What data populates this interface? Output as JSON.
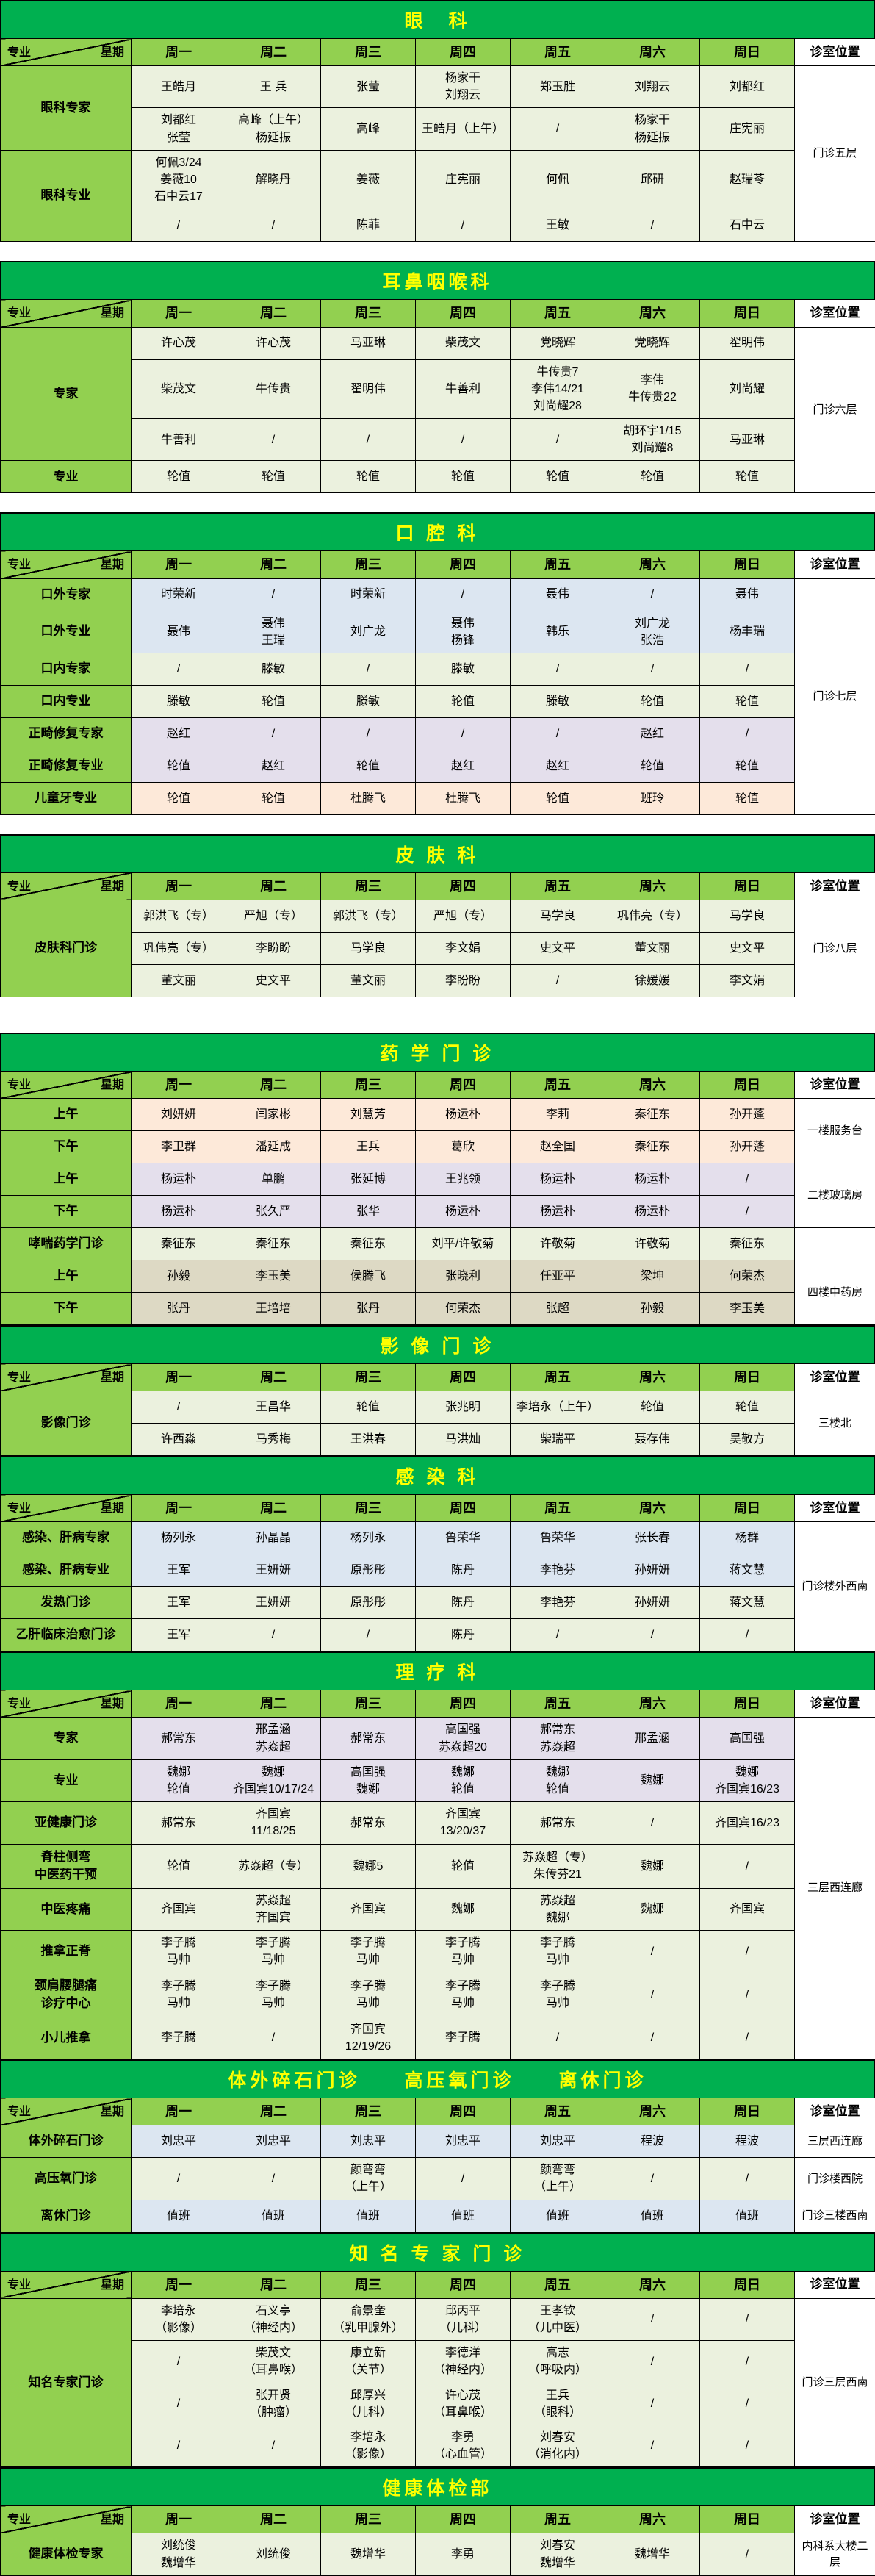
{
  "palette": {
    "title_bg": "#00B050",
    "title_fg": "#FFFF00",
    "head_bg": "#92D050",
    "border": "#000000"
  },
  "colors": {
    "g": "#EBF1DE",
    "b": "#DCE6F1",
    "p": "#E4DFEC",
    "o": "#FDE9D9",
    "t": "#DDD9C4"
  },
  "header": {
    "corner_left": "专业",
    "corner_right": "星期",
    "days": [
      "周一",
      "周二",
      "周三",
      "周四",
      "周五",
      "周六",
      "周日"
    ],
    "location": "诊室位置"
  },
  "sections": [
    {
      "title": "眼　科",
      "gap": 0,
      "rows": [
        {
          "label": "眼科专家",
          "lspan": 2,
          "bg": "g",
          "loc": "门诊五层",
          "lospan": 4,
          "cells": [
            "王皓月",
            "王 兵",
            "张莹",
            "杨家干\n刘翔云",
            "郑玉胜",
            "刘翔云",
            "刘都红"
          ]
        },
        {
          "bg": "g",
          "cells": [
            "刘都红\n张莹",
            "高峰（上午）\n杨延振",
            "高峰",
            "王皓月（上午）",
            "/",
            "杨家干\n杨延振",
            "庄宪丽"
          ]
        },
        {
          "label": "眼科专业",
          "lspan": 2,
          "bg": "g",
          "cells": [
            "何佩3/24\n姜薇10\n石中云17",
            "解晓丹",
            "姜薇",
            "庄宪丽",
            "何佩",
            "邱研",
            "赵瑞苓"
          ]
        },
        {
          "bg": "g",
          "cells": [
            "/",
            "/",
            "陈菲",
            "/",
            "王敏",
            "/",
            "石中云"
          ]
        }
      ]
    },
    {
      "title": "耳鼻咽喉科",
      "gap": 26,
      "rows": [
        {
          "label": "专家",
          "lspan": 3,
          "bg": "g",
          "loc": "门诊六层",
          "lospan": 4,
          "cells": [
            "许心茂",
            "许心茂",
            "马亚琳",
            "柴茂文",
            "党晓辉",
            "党晓辉",
            "翟明伟"
          ]
        },
        {
          "bg": "g",
          "cells": [
            "柴茂文",
            "牛传贵",
            "翟明伟",
            "牛善利",
            "牛传贵7\n李伟14/21\n刘尚耀28",
            "李伟\n牛传贵22",
            "刘尚耀"
          ]
        },
        {
          "bg": "g",
          "cells": [
            "牛善利",
            "/",
            "/",
            "/",
            "/",
            "胡环宇1/15\n刘尚耀8",
            "马亚琳"
          ]
        },
        {
          "label": "专业",
          "lspan": 1,
          "bg": "g",
          "cells": [
            "轮值",
            "轮值",
            "轮值",
            "轮值",
            "轮值",
            "轮值",
            "轮值"
          ]
        }
      ]
    },
    {
      "title": "口 腔 科",
      "gap": 26,
      "rows": [
        {
          "label": "口外专家",
          "lspan": 1,
          "bg": "b",
          "loc": "门诊七层",
          "lospan": 7,
          "cells": [
            "时荣新",
            "/",
            "时荣新",
            "/",
            "聂伟",
            "/",
            "聂伟"
          ]
        },
        {
          "label": "口外专业",
          "lspan": 1,
          "bg": "b",
          "cells": [
            "聂伟",
            "聂伟\n王瑞",
            "刘广龙",
            "聂伟\n杨锋",
            "韩乐",
            "刘广龙\n张浩",
            "杨丰瑞"
          ]
        },
        {
          "label": "口内专家",
          "lspan": 1,
          "bg": "g",
          "cells": [
            "/",
            "滕敏",
            "/",
            "滕敏",
            "/",
            "/",
            "/"
          ]
        },
        {
          "label": "口内专业",
          "lspan": 1,
          "bg": "g",
          "cells": [
            "滕敏",
            "轮值",
            "滕敏",
            "轮值",
            "滕敏",
            "轮值",
            "轮值"
          ]
        },
        {
          "label": "正畸修复专家",
          "lspan": 1,
          "bg": "p",
          "cells": [
            "赵红",
            "/",
            "/",
            "/",
            "/",
            "赵红",
            "/"
          ]
        },
        {
          "label": "正畸修复专业",
          "lspan": 1,
          "bg": "p",
          "cells": [
            "轮值",
            "赵红",
            "轮值",
            "赵红",
            "赵红",
            "轮值",
            "轮值"
          ]
        },
        {
          "label": "儿童牙专业",
          "lspan": 1,
          "bg": "o",
          "cells": [
            "轮值",
            "轮值",
            "杜腾飞",
            "杜腾飞",
            "轮值",
            "班玲",
            "轮值"
          ]
        }
      ]
    },
    {
      "title": "皮 肤 科",
      "gap": 26,
      "rows": [
        {
          "label": "皮肤科门诊",
          "lspan": 3,
          "bg": "g",
          "loc": "门诊八层",
          "lospan": 3,
          "cells": [
            "郭洪飞（专）",
            "严旭（专）",
            "郭洪飞（专）",
            "严旭（专）",
            "马学良",
            "巩伟亮（专）",
            "马学良"
          ]
        },
        {
          "bg": "g",
          "cells": [
            "巩伟亮（专）",
            "李盼盼",
            "马学良",
            "李文娟",
            "史文平",
            "董文丽",
            "史文平"
          ]
        },
        {
          "bg": "g",
          "cells": [
            "董文丽",
            "史文平",
            "董文丽",
            "李盼盼",
            "/",
            "徐媛媛",
            "李文娟"
          ]
        }
      ]
    },
    {
      "title": "药 学 门 诊",
      "gap": 48,
      "rows": [
        {
          "label": "上午",
          "lspan": 1,
          "bg": "o",
          "loc": "一楼服务台",
          "lospan": 2,
          "cells": [
            "刘妍妍",
            "闫家彬",
            "刘慧芳",
            "杨运朴",
            "李莉",
            "秦征东",
            "孙开蓬"
          ]
        },
        {
          "label": "下午",
          "lspan": 1,
          "bg": "o",
          "cells": [
            "李卫群",
            "潘延成",
            "王兵",
            "葛欣",
            "赵全国",
            "秦征东",
            "孙开蓬"
          ]
        },
        {
          "label": "上午",
          "lspan": 1,
          "bg": "p",
          "loc": "二楼玻璃房",
          "lospan": 2,
          "cells": [
            "杨运朴",
            "单鹏",
            "张延博",
            "王兆领",
            "杨运朴",
            "杨运朴",
            "/"
          ]
        },
        {
          "label": "下午",
          "lspan": 1,
          "bg": "p",
          "cells": [
            "杨运朴",
            "张久严",
            "张华",
            "杨运朴",
            "杨运朴",
            "杨运朴",
            "/"
          ]
        },
        {
          "label": "哮喘药学门诊",
          "lspan": 1,
          "bg": "g",
          "loc": "",
          "lospan": 1,
          "cells": [
            "秦征东",
            "秦征东",
            "秦征东",
            "刘平/许敬菊",
            "许敬菊",
            "许敬菊",
            "秦征东"
          ]
        },
        {
          "label": "上午",
          "lspan": 1,
          "bg": "t",
          "loc": "四楼中药房",
          "lospan": 2,
          "cells": [
            "孙毅",
            "李玉美",
            "侯腾飞",
            "张晓利",
            "任亚平",
            "梁坤",
            "何荣杰"
          ]
        },
        {
          "label": "下午",
          "lspan": 1,
          "bg": "t",
          "cells": [
            "张丹",
            "王培培",
            "张丹",
            "何荣杰",
            "张超",
            "孙毅",
            "李玉美"
          ]
        }
      ]
    },
    {
      "title": "影 像 门 诊",
      "gap": 0,
      "rows": [
        {
          "label": "影像门诊",
          "lspan": 2,
          "bg": "g",
          "loc": "三楼北",
          "lospan": 2,
          "cells": [
            "/",
            "王昌华",
            "轮值",
            "张兆明",
            "李培永（上午）",
            "轮值",
            "轮值"
          ]
        },
        {
          "bg": "g",
          "cells": [
            "许西淼",
            "马秀梅",
            "王洪春",
            "马洪灿",
            "柴瑞平",
            "聂存伟",
            "吴敬方"
          ]
        }
      ]
    },
    {
      "title": "感 染 科",
      "gap": 0,
      "rows": [
        {
          "label": "感染、肝病专家",
          "lspan": 1,
          "bg": "b",
          "loc": "门诊楼外西南",
          "lospan": 4,
          "cells": [
            "杨列永",
            "孙晶晶",
            "杨列永",
            "鲁荣华",
            "鲁荣华",
            "张长春",
            "杨群"
          ]
        },
        {
          "label": "感染、肝病专业",
          "lspan": 1,
          "bg": "b",
          "cells": [
            "王军",
            "王妍妍",
            "原彤彤",
            "陈丹",
            "李艳芬",
            "孙妍妍",
            "蒋文慧"
          ]
        },
        {
          "label": "发热门诊",
          "lspan": 1,
          "bg": "g",
          "cells": [
            "王军",
            "王妍妍",
            "原彤彤",
            "陈丹",
            "李艳芬",
            "孙妍妍",
            "蒋文慧"
          ]
        },
        {
          "label": "乙肝临床治愈门诊",
          "lspan": 1,
          "bg": "g",
          "cells": [
            "王军",
            "/",
            "/",
            "陈丹",
            "/",
            "/",
            "/"
          ]
        }
      ]
    },
    {
      "title": "理 疗 科",
      "gap": 0,
      "rows": [
        {
          "label": "专家",
          "lspan": 1,
          "bg": "p",
          "loc": "三层西连廊",
          "lospan": 8,
          "cells": [
            "郝常东",
            "邢孟涵\n苏焱超",
            "郝常东",
            "高国强\n苏焱超20",
            "郝常东\n苏焱超",
            "邢孟涵",
            "高国强"
          ]
        },
        {
          "label": "专业",
          "lspan": 1,
          "bg": "p",
          "cells": [
            "魏娜\n轮值",
            "魏娜\n齐国宾10/17/24",
            "高国强\n魏娜",
            "魏娜\n轮值",
            "魏娜\n轮值",
            "魏娜",
            "魏娜\n齐国宾16/23"
          ]
        },
        {
          "label": "亚健康门诊",
          "lspan": 1,
          "bg": "g",
          "cells": [
            "郝常东",
            "齐国宾\n11/18/25",
            "郝常东",
            "齐国宾\n13/20/37",
            "郝常东",
            "/",
            "齐国宾16/23"
          ]
        },
        {
          "label": "脊柱侧弯\n中医药干预",
          "lspan": 1,
          "bg": "g",
          "cells": [
            "轮值",
            "苏焱超（专）",
            "魏娜5",
            "轮值",
            "苏焱超（专）\n朱传芬21",
            "魏娜",
            "/"
          ]
        },
        {
          "label": "中医疼痛",
          "lspan": 1,
          "bg": "g",
          "cells": [
            "齐国宾",
            "苏焱超\n齐国宾",
            "齐国宾",
            "魏娜",
            "苏焱超\n魏娜",
            "魏娜",
            "齐国宾"
          ]
        },
        {
          "label": "推拿正脊",
          "lspan": 1,
          "bg": "g",
          "cells": [
            "李子腾\n马帅",
            "李子腾\n马帅",
            "李子腾\n马帅",
            "李子腾\n马帅",
            "李子腾\n马帅",
            "/",
            "/"
          ]
        },
        {
          "label": "颈肩腰腿痛\n诊疗中心",
          "lspan": 1,
          "bg": "g",
          "cells": [
            "李子腾\n马帅",
            "李子腾\n马帅",
            "李子腾\n马帅",
            "李子腾\n马帅",
            "李子腾\n马帅",
            "/",
            "/"
          ]
        },
        {
          "label": "小儿推拿",
          "lspan": 1,
          "bg": "g",
          "cells": [
            "李子腾",
            "/",
            "齐国宾\n12/19/26",
            "李子腾",
            "/",
            "/",
            "/"
          ]
        }
      ]
    },
    {
      "title": "体外碎石门诊　　高压氧门诊　　离休门诊",
      "gap": 0,
      "rows": [
        {
          "label": "体外碎石门诊",
          "lspan": 1,
          "bg": "b",
          "loc": "三层西连廊",
          "lospan": 1,
          "cells": [
            "刘忠平",
            "刘忠平",
            "刘忠平",
            "刘忠平",
            "刘忠平",
            "程波",
            "程波"
          ]
        },
        {
          "label": "高压氧门诊",
          "lspan": 1,
          "bg": "g",
          "loc": "门诊楼西院",
          "lospan": 1,
          "cells": [
            "/",
            "/",
            "颜弯弯\n（上午）",
            "/",
            "颜弯弯\n（上午）",
            "/",
            "/"
          ]
        },
        {
          "label": "离休门诊",
          "lspan": 1,
          "bg": "b",
          "loc": "门诊三楼西南",
          "lospan": 1,
          "cells": [
            "值班",
            "值班",
            "值班",
            "值班",
            "值班",
            "值班",
            "值班"
          ]
        }
      ]
    },
    {
      "title": "知 名 专 家 门 诊",
      "gap": 0,
      "rows": [
        {
          "label": "知名专家门诊",
          "lspan": 4,
          "bg": "g",
          "loc": "门诊三层西南",
          "lospan": 4,
          "cells": [
            "李培永\n（影像）",
            "石义亭\n（神经内）",
            "俞景奎\n（乳甲腺外）",
            "邱丙平\n（儿科）",
            "王孝钦\n（儿中医）",
            "/",
            "/"
          ]
        },
        {
          "bg": "g",
          "cells": [
            "/",
            "柴茂文\n（耳鼻喉）",
            "康立新\n（关节）",
            "李德洋\n（神经内）",
            "高志\n（呼吸内）",
            "/",
            "/"
          ]
        },
        {
          "bg": "g",
          "cells": [
            "/",
            "张开贤\n（肿瘤）",
            "邱厚兴\n（儿科）",
            "许心茂\n（耳鼻喉）",
            "王兵\n（眼科）",
            "/",
            "/"
          ]
        },
        {
          "bg": "g",
          "cells": [
            "/",
            "/",
            "李培永\n（影像）",
            "李勇\n（心血管）",
            "刘春安\n（消化内）",
            "/",
            "/"
          ]
        }
      ]
    },
    {
      "title": "健康体检部",
      "gap": 0,
      "rows": [
        {
          "label": "健康体检专家",
          "lspan": 1,
          "bg": "g",
          "loc": "内科系大楼二层",
          "lospan": 1,
          "cells": [
            "刘统俊\n魏增华",
            "刘统俊",
            "魏增华",
            "李勇",
            "刘春安\n魏增华",
            "魏增华",
            "/"
          ]
        }
      ]
    }
  ]
}
